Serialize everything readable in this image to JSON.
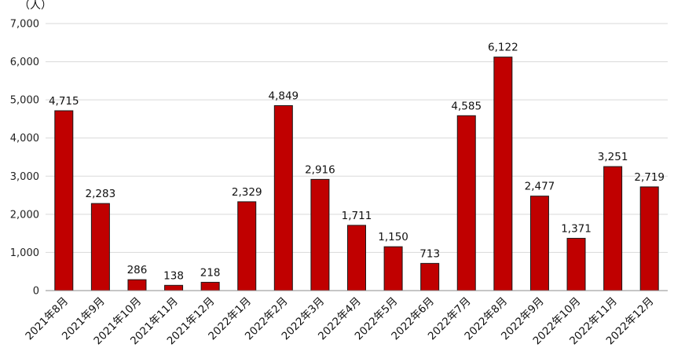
{
  "chart_data": {
    "type": "bar",
    "ylabel": "（人）",
    "ylim": [
      0,
      7000
    ],
    "yticks": [
      "0",
      "1,000",
      "2,000",
      "3,000",
      "4,000",
      "5,000",
      "6,000",
      "7,000"
    ],
    "grid": true,
    "bar_color": "#c00000",
    "categories": [
      "2021年8月",
      "2021年9月",
      "2021年10月",
      "2021年11月",
      "2021年12月",
      "2022年1月",
      "2022年2月",
      "2022年3月",
      "2022年4月",
      "2022年5月",
      "2022年6月",
      "2022年7月",
      "2022年8月",
      "2022年9月",
      "2022年10月",
      "2022年11月",
      "2022年12月"
    ],
    "values": [
      4715,
      2283,
      286,
      138,
      218,
      2329,
      4849,
      2916,
      1711,
      1150,
      713,
      4585,
      6122,
      2477,
      1371,
      3251,
      2719
    ],
    "value_labels": [
      "4,715",
      "2,283",
      "286",
      "138",
      "218",
      "2,329",
      "4,849",
      "2,916",
      "1,711",
      "1,150",
      "713",
      "4,585",
      "6,122",
      "2,477",
      "1,371",
      "3,251",
      "2,719"
    ]
  }
}
